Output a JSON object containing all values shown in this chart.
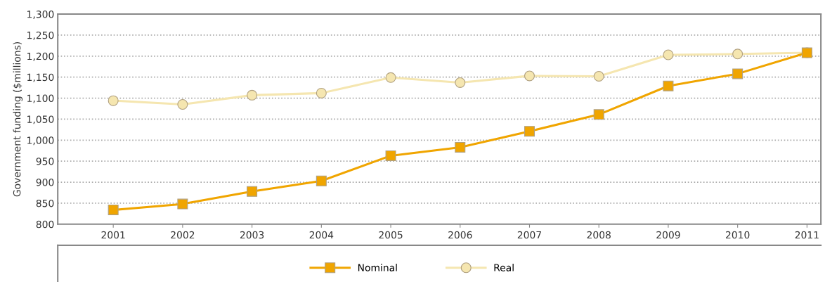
{
  "chart_data": {
    "type": "line",
    "ylabel": "Government funding ($millions)",
    "categories": [
      "2001",
      "2002",
      "2003",
      "2004",
      "2005",
      "2006",
      "2007",
      "2008",
      "2009",
      "2010",
      "2011"
    ],
    "series": [
      {
        "name": "Nominal",
        "color": "#f0a500",
        "marker": "square",
        "values": [
          834,
          848,
          878,
          903,
          963,
          983,
          1021,
          1061,
          1129,
          1158,
          1208
        ]
      },
      {
        "name": "Real",
        "color": "#f5e6b0",
        "marker": "circle",
        "values": [
          1094,
          1085,
          1107,
          1112,
          1149,
          1137,
          1153,
          1152,
          1203,
          1205,
          1208
        ]
      }
    ],
    "ylim": [
      800,
      1300
    ],
    "yticks": [
      {
        "value": 800,
        "label": "800"
      },
      {
        "value": 850,
        "label": "850"
      },
      {
        "value": 900,
        "label": "900"
      },
      {
        "value": 950,
        "label": "950"
      },
      {
        "value": 1000,
        "label": "1,000"
      },
      {
        "value": 1050,
        "label": "1,050"
      },
      {
        "value": 1100,
        "label": "1,100"
      },
      {
        "value": 1150,
        "label": "1,150"
      },
      {
        "value": 1200,
        "label": "1,200"
      },
      {
        "value": 1250,
        "label": "1,250"
      },
      {
        "value": 1300,
        "label": "1,300"
      }
    ],
    "grid": "y",
    "legend": "bottom",
    "line_style": "solid"
  }
}
